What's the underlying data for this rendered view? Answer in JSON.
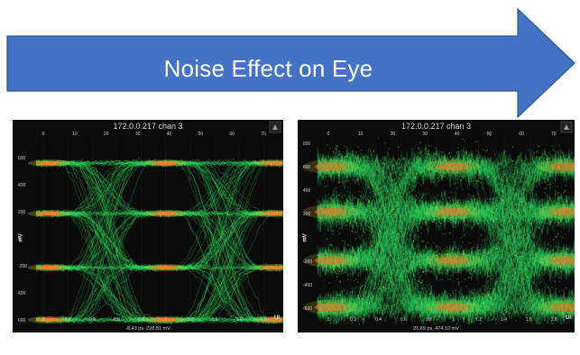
{
  "banner": {
    "title": "Noise Effect on Eye",
    "color": "#4472C4",
    "border": "#2F528F"
  },
  "diagrams": [
    {
      "id": "clean",
      "title": "172.0.0.217 chan 3",
      "top_ticks": [
        "0",
        "10",
        "20",
        "30",
        "40",
        "50",
        "60",
        "70"
      ],
      "bottom_ticks": [
        "0",
        "0.2",
        "0.4",
        "0.6",
        "0.8",
        "1",
        "1.2",
        "1.4",
        "1.6",
        "1.8"
      ],
      "left_ticks": [
        "600",
        "400",
        "200",
        "0",
        "-200",
        "400",
        "600"
      ],
      "y_label": "mV",
      "x_unit": "UI",
      "readout": "-8.43 ps, 228.81 mV"
    },
    {
      "id": "noisy",
      "title": "172.0.0.217 chan 3",
      "top_ticks": [
        "0",
        "10",
        "20",
        "30",
        "40",
        "50",
        "60",
        "70"
      ],
      "bottom_ticks": [
        "0",
        "0.2",
        "0.4",
        "0.6",
        "0.8",
        "1",
        "1.2",
        "1.4",
        "1.6",
        "1.8"
      ],
      "left_ticks": [
        "800",
        "600",
        "400",
        "200",
        "0",
        "-200",
        "-400",
        "-600",
        "-800"
      ],
      "y_label": "mV",
      "x_unit": "UI",
      "readout": "21.69 ps, 474.10 mV"
    }
  ]
}
